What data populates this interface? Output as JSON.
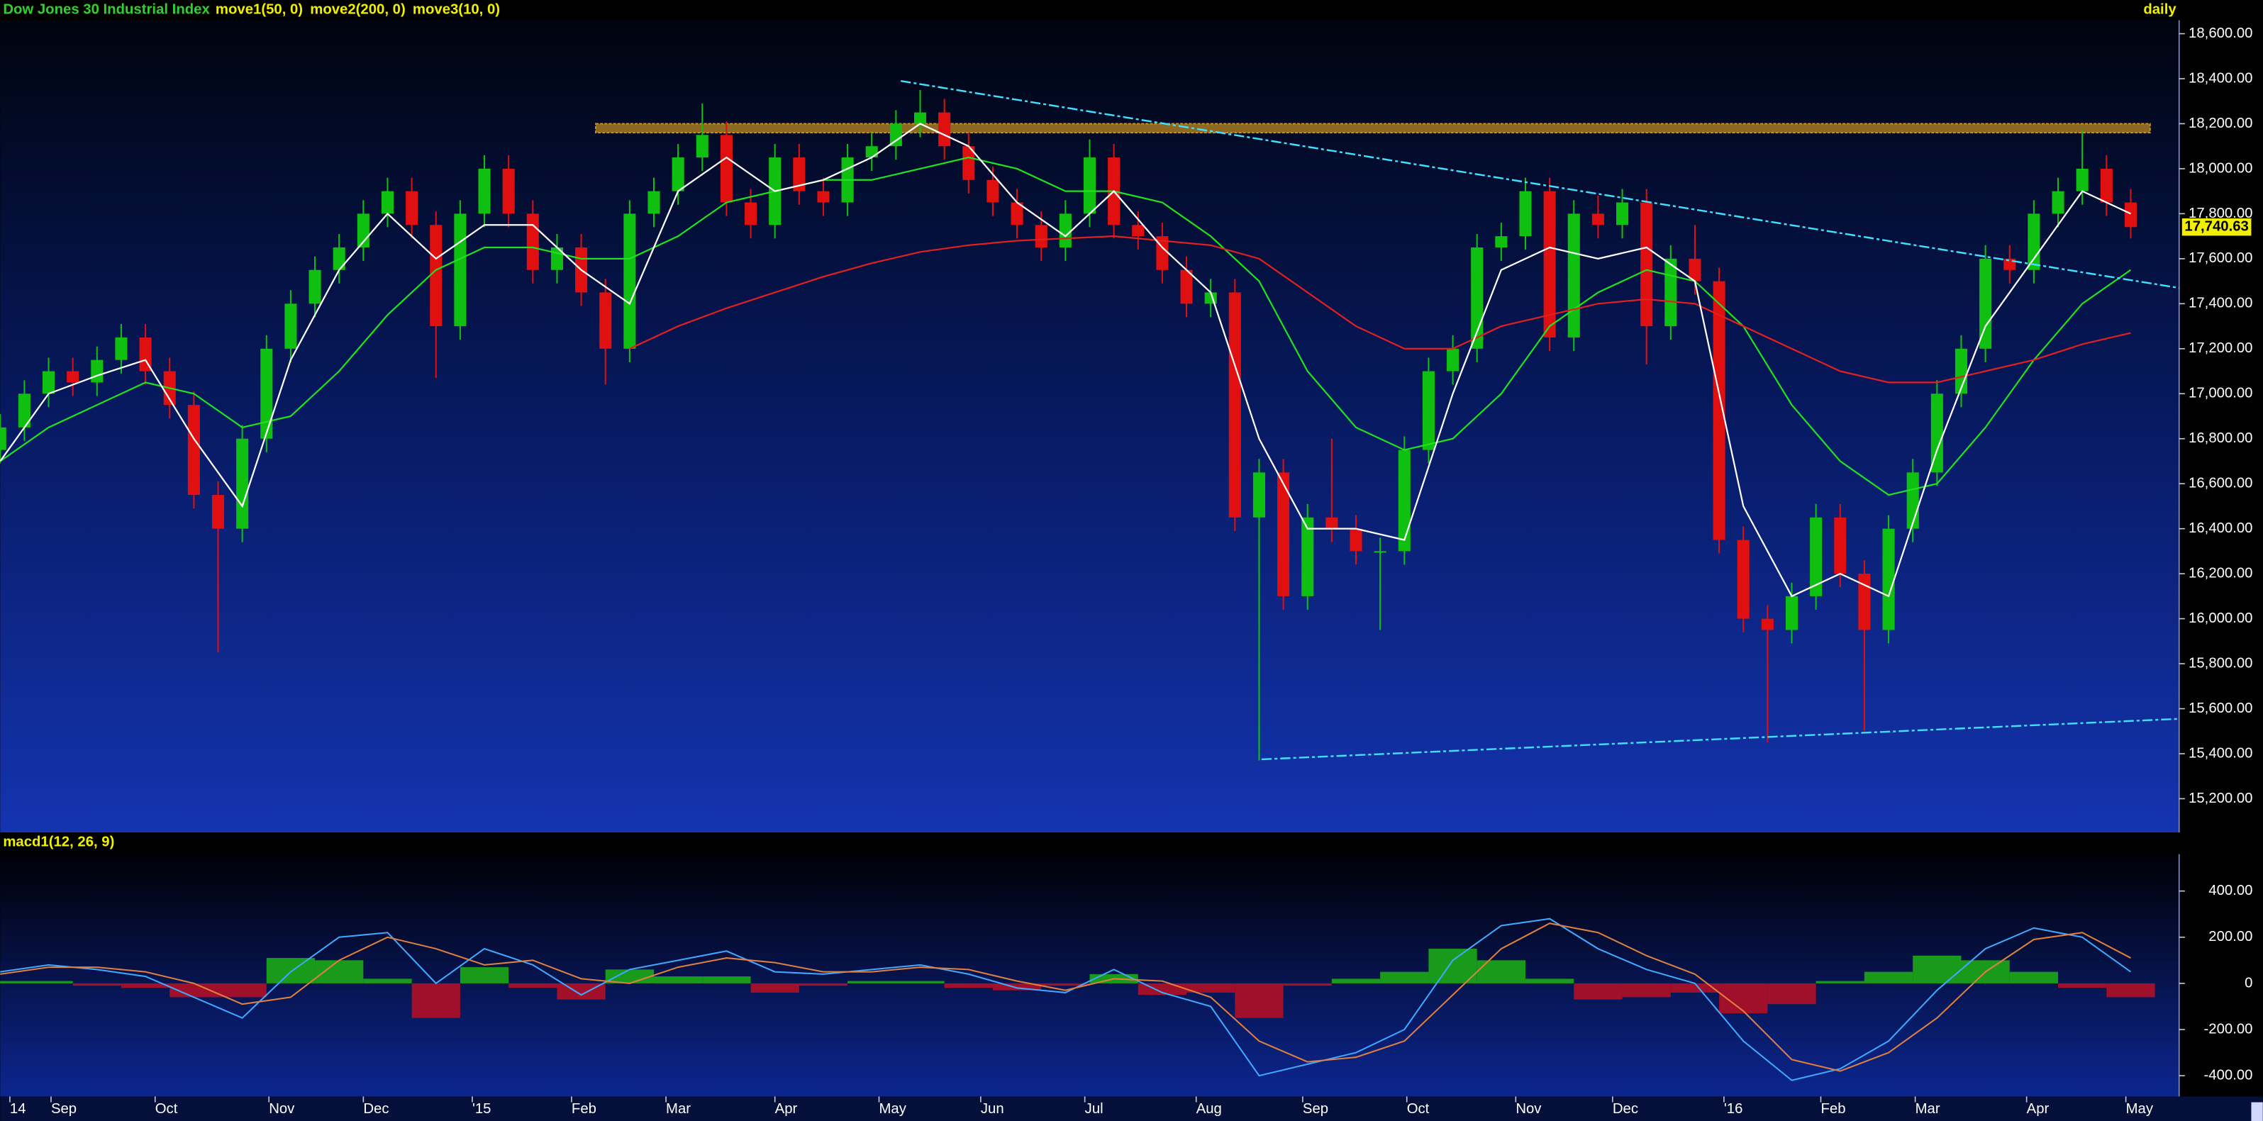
{
  "chart_data": [
    {
      "type": "candlestick",
      "title": "Dow Jones 30 Industrial Index",
      "period": "daily",
      "title_color": "#30d030",
      "legend_color": "#f0f000",
      "up_color": "#10c010",
      "down_color": "#e01010",
      "xlim": [
        0,
        90
      ],
      "ylim": [
        15050,
        18660
      ],
      "yticks": [
        {
          "value": 15200,
          "label": "15,200.00"
        },
        {
          "value": 15400,
          "label": "15,400.00"
        },
        {
          "value": 15600,
          "label": "15,600.00"
        },
        {
          "value": 15800,
          "label": "15,800.00"
        },
        {
          "value": 16000,
          "label": "16,000.00"
        },
        {
          "value": 16200,
          "label": "16,200.00"
        },
        {
          "value": 16400,
          "label": "16,400.00"
        },
        {
          "value": 16600,
          "label": "16,600.00"
        },
        {
          "value": 16800,
          "label": "16,800.00"
        },
        {
          "value": 17000,
          "label": "17,000.00"
        },
        {
          "value": 17200,
          "label": "17,200.00"
        },
        {
          "value": 17400,
          "label": "17,400.00"
        },
        {
          "value": 17600,
          "label": "17,600.00"
        },
        {
          "value": 17800,
          "label": "17,800.00"
        },
        {
          "value": 18000,
          "label": "18,000.00"
        },
        {
          "value": 18200,
          "label": "18,200.00"
        },
        {
          "value": 18400,
          "label": "18,400.00"
        },
        {
          "value": 18600,
          "label": "18,600.00"
        }
      ],
      "last_price": {
        "value": 17740.63,
        "label": "17,740.63"
      },
      "x": [
        0,
        1,
        2,
        3,
        4,
        5,
        6,
        7,
        8,
        9,
        10,
        11,
        12,
        13,
        14,
        15,
        16,
        17,
        18,
        19,
        20,
        21,
        22,
        23,
        24,
        25,
        26,
        27,
        28,
        29,
        30,
        31,
        32,
        33,
        34,
        35,
        36,
        37,
        38,
        39,
        40,
        41,
        42,
        43,
        44,
        45,
        46,
        47,
        48,
        49,
        50,
        51,
        52,
        53,
        54,
        55,
        56,
        57,
        58,
        59,
        60,
        61,
        62,
        63,
        64,
        65,
        66,
        67,
        68,
        69,
        70,
        71,
        72,
        73,
        74,
        75,
        76,
        77,
        78,
        79,
        80,
        81,
        82,
        83,
        84,
        85,
        86,
        87,
        88
      ],
      "open": [
        16750,
        16850,
        17000,
        17100,
        17050,
        17150,
        17250,
        17100,
        16950,
        16550,
        16400,
        16800,
        17200,
        17400,
        17550,
        17650,
        17800,
        17900,
        17750,
        17300,
        17800,
        18000,
        17800,
        17550,
        17650,
        17450,
        17200,
        17800,
        17900,
        18050,
        18150,
        17850,
        17750,
        18050,
        17900,
        17850,
        18050,
        18100,
        18200,
        18250,
        18100,
        17950,
        17850,
        17750,
        17650,
        17800,
        18050,
        17750,
        17700,
        17550,
        17400,
        17450,
        16450,
        16650,
        16100,
        16450,
        16400,
        16300,
        16300,
        16750,
        17100,
        17200,
        17650,
        17700,
        17900,
        17250,
        17800,
        17750,
        17850,
        17300,
        17600,
        17500,
        16350,
        16000,
        15950,
        16100,
        16450,
        16200,
        15950,
        16400,
        16650,
        17000,
        17200,
        17600,
        17550,
        17800,
        17900,
        18000,
        17850
      ],
      "high": [
        16910,
        17060,
        17160,
        17160,
        17210,
        17310,
        17310,
        17160,
        17010,
        16610,
        16860,
        17260,
        17460,
        17610,
        17710,
        17860,
        17960,
        17960,
        17810,
        17860,
        18060,
        18060,
        17860,
        17710,
        17710,
        17510,
        17860,
        17960,
        18110,
        18290,
        18210,
        17910,
        18110,
        18110,
        17960,
        18110,
        18160,
        18260,
        18350,
        18310,
        18160,
        18010,
        17910,
        17810,
        17860,
        18130,
        18110,
        17810,
        17760,
        17610,
        17510,
        17510,
        16710,
        16710,
        16510,
        16800,
        16460,
        16360,
        16810,
        17160,
        17260,
        17710,
        17760,
        17960,
        17960,
        17860,
        17880,
        17910,
        17910,
        17660,
        17750,
        17560,
        16410,
        16060,
        16160,
        16510,
        16510,
        16260,
        16460,
        16710,
        17060,
        17260,
        17660,
        17660,
        17860,
        17960,
        18170,
        18060,
        17910
      ],
      "low": [
        16690,
        16790,
        16940,
        16990,
        16990,
        17090,
        17040,
        16890,
        16490,
        15850,
        16340,
        16740,
        17140,
        17340,
        17490,
        17590,
        17740,
        17690,
        17070,
        17240,
        17740,
        17740,
        17490,
        17490,
        17390,
        17040,
        17140,
        17740,
        17840,
        17990,
        17790,
        17690,
        17690,
        17840,
        17790,
        17790,
        17990,
        18040,
        18140,
        18040,
        17890,
        17790,
        17690,
        17590,
        17590,
        17740,
        17690,
        17640,
        17490,
        17340,
        17340,
        16390,
        15370,
        16040,
        16040,
        16340,
        16240,
        15950,
        16240,
        16690,
        17040,
        17140,
        17590,
        17640,
        17190,
        17190,
        17690,
        17690,
        17130,
        17240,
        17440,
        16290,
        15940,
        15450,
        15890,
        16040,
        16140,
        15500,
        15890,
        16340,
        16590,
        16940,
        17140,
        17490,
        17490,
        17740,
        17840,
        17790,
        17690
      ],
      "close": [
        16850,
        17000,
        17100,
        17050,
        17150,
        17250,
        17100,
        16950,
        16550,
        16400,
        16800,
        17200,
        17400,
        17550,
        17650,
        17800,
        17900,
        17750,
        17300,
        17800,
        18000,
        17800,
        17550,
        17650,
        17450,
        17200,
        17800,
        17900,
        18050,
        18150,
        17850,
        17750,
        18050,
        17900,
        17850,
        18050,
        18100,
        18200,
        18250,
        18100,
        17950,
        17850,
        17750,
        17650,
        17800,
        18050,
        17750,
        17700,
        17550,
        17400,
        17450,
        16450,
        16650,
        16100,
        16450,
        16400,
        16300,
        16300,
        16750,
        17100,
        17200,
        17650,
        17700,
        17900,
        17250,
        17800,
        17750,
        17850,
        17300,
        17600,
        17500,
        16350,
        16000,
        15950,
        16100,
        16450,
        16200,
        15950,
        16400,
        16650,
        17000,
        17200,
        17600,
        17550,
        17800,
        17900,
        18000,
        17850,
        17740.63
      ],
      "series": [
        {
          "name": "move1(50, 0)",
          "color": "#20e020",
          "x": [
            0,
            2,
            4,
            6,
            8,
            10,
            12,
            14,
            16,
            18,
            20,
            22,
            24,
            26,
            28,
            30,
            32,
            34,
            36,
            38,
            40,
            42,
            44,
            46,
            48,
            50,
            52,
            54,
            56,
            58,
            60,
            62,
            64,
            66,
            68,
            70,
            72,
            74,
            76,
            78,
            80,
            82,
            84,
            86,
            88
          ],
          "values": [
            16700,
            16850,
            16950,
            17050,
            17000,
            16850,
            16900,
            17100,
            17350,
            17550,
            17650,
            17650,
            17600,
            17600,
            17700,
            17850,
            17900,
            17950,
            17950,
            18000,
            18050,
            18000,
            17900,
            17900,
            17850,
            17700,
            17500,
            17100,
            16850,
            16750,
            16800,
            17000,
            17300,
            17450,
            17550,
            17500,
            17300,
            16950,
            16700,
            16550,
            16600,
            16850,
            17150,
            17400,
            17550
          ]
        },
        {
          "name": "move2(200, 0)",
          "color": "#e02020",
          "x": [
            26,
            28,
            30,
            32,
            34,
            36,
            38,
            40,
            42,
            44,
            46,
            48,
            50,
            52,
            54,
            56,
            58,
            60,
            62,
            64,
            66,
            68,
            70,
            72,
            74,
            76,
            78,
            80,
            82,
            84,
            86,
            88
          ],
          "values": [
            17200,
            17300,
            17380,
            17450,
            17520,
            17580,
            17630,
            17660,
            17680,
            17690,
            17700,
            17680,
            17660,
            17600,
            17450,
            17300,
            17200,
            17200,
            17300,
            17350,
            17400,
            17420,
            17400,
            17300,
            17200,
            17100,
            17050,
            17050,
            17100,
            17150,
            17220,
            17270
          ]
        },
        {
          "name": "move3(10, 0)",
          "color": "#ffffff",
          "x": [
            0,
            2,
            4,
            6,
            8,
            10,
            12,
            14,
            16,
            18,
            20,
            22,
            24,
            26,
            28,
            30,
            32,
            34,
            36,
            38,
            40,
            42,
            44,
            46,
            48,
            50,
            52,
            54,
            56,
            58,
            60,
            62,
            64,
            66,
            68,
            70,
            72,
            74,
            76,
            78,
            80,
            82,
            84,
            86,
            88
          ],
          "values": [
            16700,
            17000,
            17080,
            17150,
            16800,
            16500,
            17150,
            17550,
            17800,
            17600,
            17750,
            17750,
            17550,
            17400,
            17900,
            18050,
            17900,
            17950,
            18050,
            18200,
            18100,
            17850,
            17700,
            17900,
            17650,
            17450,
            16800,
            16400,
            16400,
            16350,
            17000,
            17550,
            17650,
            17600,
            17650,
            17500,
            16500,
            16100,
            16200,
            16100,
            16750,
            17300,
            17600,
            17900,
            17800
          ]
        }
      ],
      "trend_lines": [
        {
          "color": "#40e0ff",
          "x": [
            37.2,
            90
          ],
          "y": [
            18390,
            17470
          ]
        },
        {
          "color": "#40e0ff",
          "x": [
            52.1,
            90
          ],
          "y": [
            15375,
            15555
          ]
        }
      ],
      "resistance_band": {
        "color": "#c89020",
        "x": [
          24.6,
          88.8
        ],
        "y": [
          18160,
          18200
        ]
      }
    },
    {
      "type": "macd",
      "title": "macd1(12, 26, 9)",
      "title_color": "#f0f000",
      "xlim": [
        0,
        90
      ],
      "ylim": [
        -490,
        560
      ],
      "yticks": [
        {
          "value": -400,
          "label": "-400.00"
        },
        {
          "value": -200,
          "label": "-200.00"
        },
        0,
        {
          "value": 200,
          "label": "200.00"
        },
        {
          "value": 400,
          "label": "400.00"
        }
      ],
      "xticks": [
        {
          "value": 0.4,
          "label": "14"
        },
        {
          "value": 2.1,
          "label": "Sep"
        },
        {
          "value": 6.4,
          "label": "Oct"
        },
        {
          "value": 11.1,
          "label": "Nov"
        },
        {
          "value": 15.0,
          "label": "Dec"
        },
        {
          "value": 19.5,
          "label": "'15"
        },
        {
          "value": 23.6,
          "label": "Feb"
        },
        {
          "value": 27.5,
          "label": "Mar"
        },
        {
          "value": 32.0,
          "label": "Apr"
        },
        {
          "value": 36.3,
          "label": "May"
        },
        {
          "value": 40.5,
          "label": "Jun"
        },
        {
          "value": 44.8,
          "label": "Jul"
        },
        {
          "value": 49.4,
          "label": "Aug"
        },
        {
          "value": 53.8,
          "label": "Sep"
        },
        {
          "value": 58.1,
          "label": "Oct"
        },
        {
          "value": 62.6,
          "label": "Nov"
        },
        {
          "value": 66.6,
          "label": "Dec"
        },
        {
          "value": 71.2,
          "label": "'16"
        },
        {
          "value": 75.2,
          "label": "Feb"
        },
        {
          "value": 79.1,
          "label": "Mar"
        },
        {
          "value": 83.7,
          "label": "Apr"
        },
        {
          "value": 87.8,
          "label": "May"
        }
      ],
      "x": [
        0,
        2,
        4,
        6,
        8,
        10,
        12,
        14,
        16,
        18,
        20,
        22,
        24,
        26,
        28,
        30,
        32,
        34,
        36,
        38,
        40,
        42,
        44,
        46,
        48,
        50,
        52,
        54,
        56,
        58,
        60,
        62,
        64,
        66,
        68,
        70,
        72,
        74,
        76,
        78,
        80,
        82,
        84,
        86,
        88
      ],
      "series": [
        {
          "color": "#40a8ff",
          "values": [
            50,
            80,
            60,
            30,
            -60,
            -150,
            50,
            200,
            220,
            0,
            150,
            80,
            -50,
            60,
            100,
            140,
            50,
            40,
            60,
            80,
            40,
            -20,
            -40,
            60,
            -40,
            -100,
            -400,
            -350,
            -300,
            -200,
            100,
            250,
            280,
            150,
            60,
            0,
            -250,
            -420,
            -370,
            -250,
            -30,
            150,
            240,
            200,
            50
          ]
        },
        {
          "color": "#e08040",
          "values": [
            40,
            70,
            70,
            50,
            0,
            -90,
            -60,
            100,
            200,
            150,
            80,
            100,
            20,
            0,
            70,
            110,
            90,
            50,
            50,
            70,
            60,
            10,
            -30,
            20,
            10,
            -60,
            -250,
            -340,
            -320,
            -250,
            -50,
            150,
            260,
            220,
            120,
            40,
            -120,
            -330,
            -380,
            -300,
            -150,
            50,
            190,
            220,
            110
          ]
        }
      ],
      "histogram": {
        "up_color": "#1a9a1a",
        "down_color": "#a0102a",
        "values": [
          10,
          10,
          -10,
          -20,
          -60,
          -60,
          110,
          100,
          20,
          -150,
          70,
          -20,
          -70,
          60,
          30,
          30,
          -40,
          -10,
          10,
          10,
          -20,
          -30,
          -10,
          40,
          -50,
          -40,
          -150,
          -10,
          20,
          50,
          150,
          100,
          20,
          -70,
          -60,
          -40,
          -130,
          -90,
          10,
          50,
          120,
          100,
          50,
          -20,
          -60
        ]
      }
    }
  ]
}
